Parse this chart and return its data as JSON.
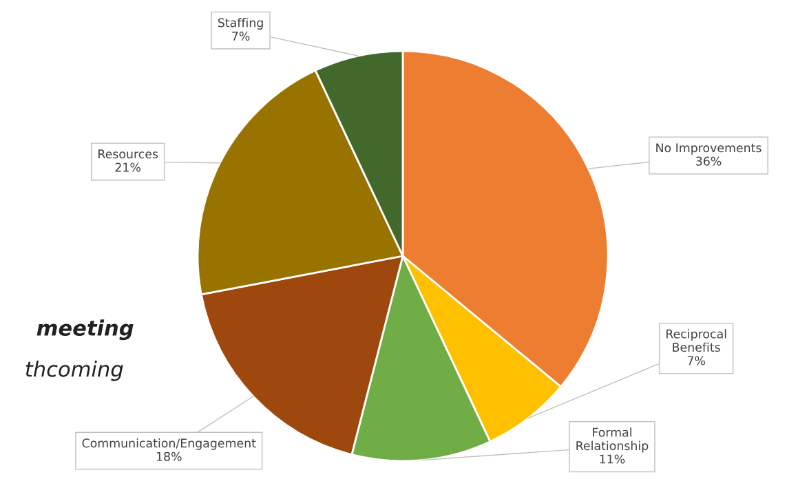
{
  "chart_data": {
    "type": "pie",
    "categories": [
      "No Improvements",
      "Reciprocal\nBenefits",
      "Formal\nRelationship",
      "Communication/Engagement",
      "Resources",
      "Staffing"
    ],
    "values": [
      36,
      7,
      11,
      18,
      21,
      7
    ],
    "colors": [
      "#ed7d31",
      "#ffc000",
      "#70ad47",
      "#9e480e",
      "#997300",
      "#43682b"
    ],
    "value_labels": [
      "36%",
      "7%",
      "11%",
      "18%",
      "21%",
      "7%"
    ],
    "annotations": [
      "meeting",
      "thcoming"
    ]
  }
}
